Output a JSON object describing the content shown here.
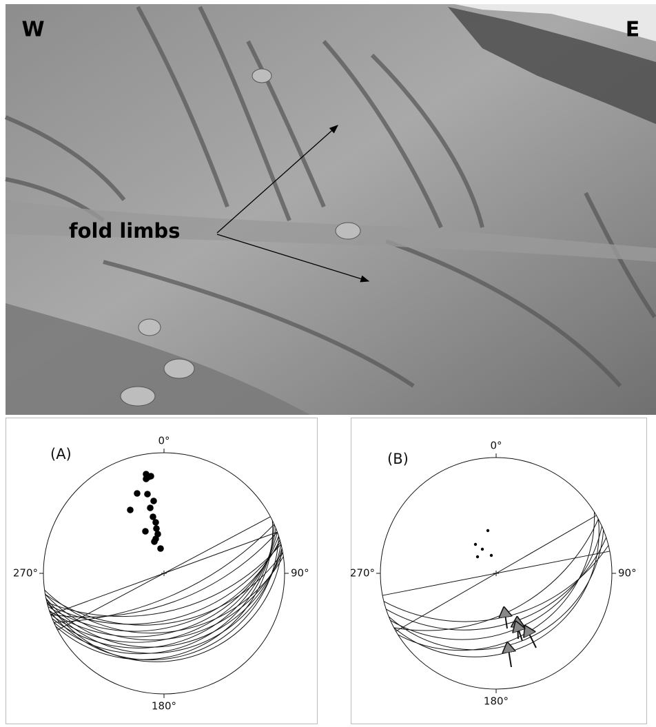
{
  "photo": {
    "west_label": "W",
    "east_label": "E",
    "annotation": "fold limbs"
  },
  "stereonets": [
    {
      "label": "(A)",
      "north": "0°",
      "east": "90°",
      "south": "180°",
      "west": "270°"
    },
    {
      "label": "(B)",
      "north": "0°",
      "east": "90°",
      "south": "180°",
      "west": "270°"
    }
  ]
}
